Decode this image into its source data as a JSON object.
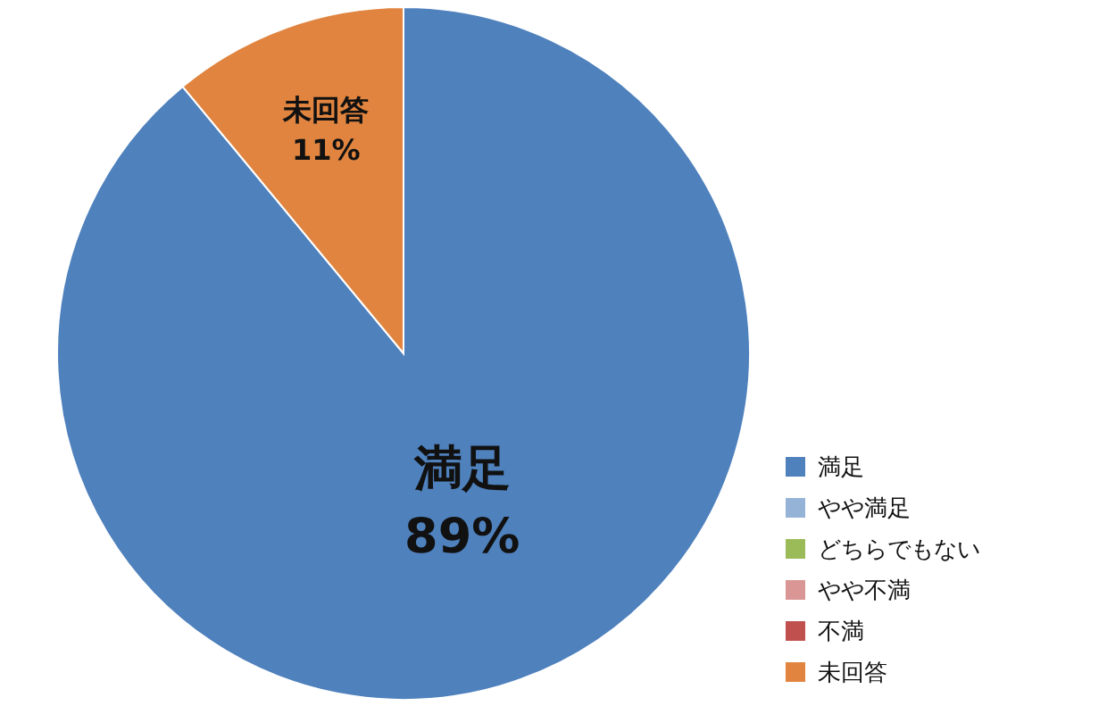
{
  "chart_data": {
    "type": "pie",
    "categories": [
      "満足",
      "やや満足",
      "どちらでもない",
      "やや不満",
      "不満",
      "未回答"
    ],
    "values": [
      89,
      0,
      0,
      0,
      0,
      11
    ],
    "colors": [
      "#4f81bd",
      "#95b3d7",
      "#9bbb59",
      "#d99694",
      "#c0504d",
      "#e0843f"
    ],
    "value_labels": [
      "満足\n89%",
      null,
      null,
      null,
      null,
      "未回答\n11%"
    ],
    "legend": "right"
  }
}
